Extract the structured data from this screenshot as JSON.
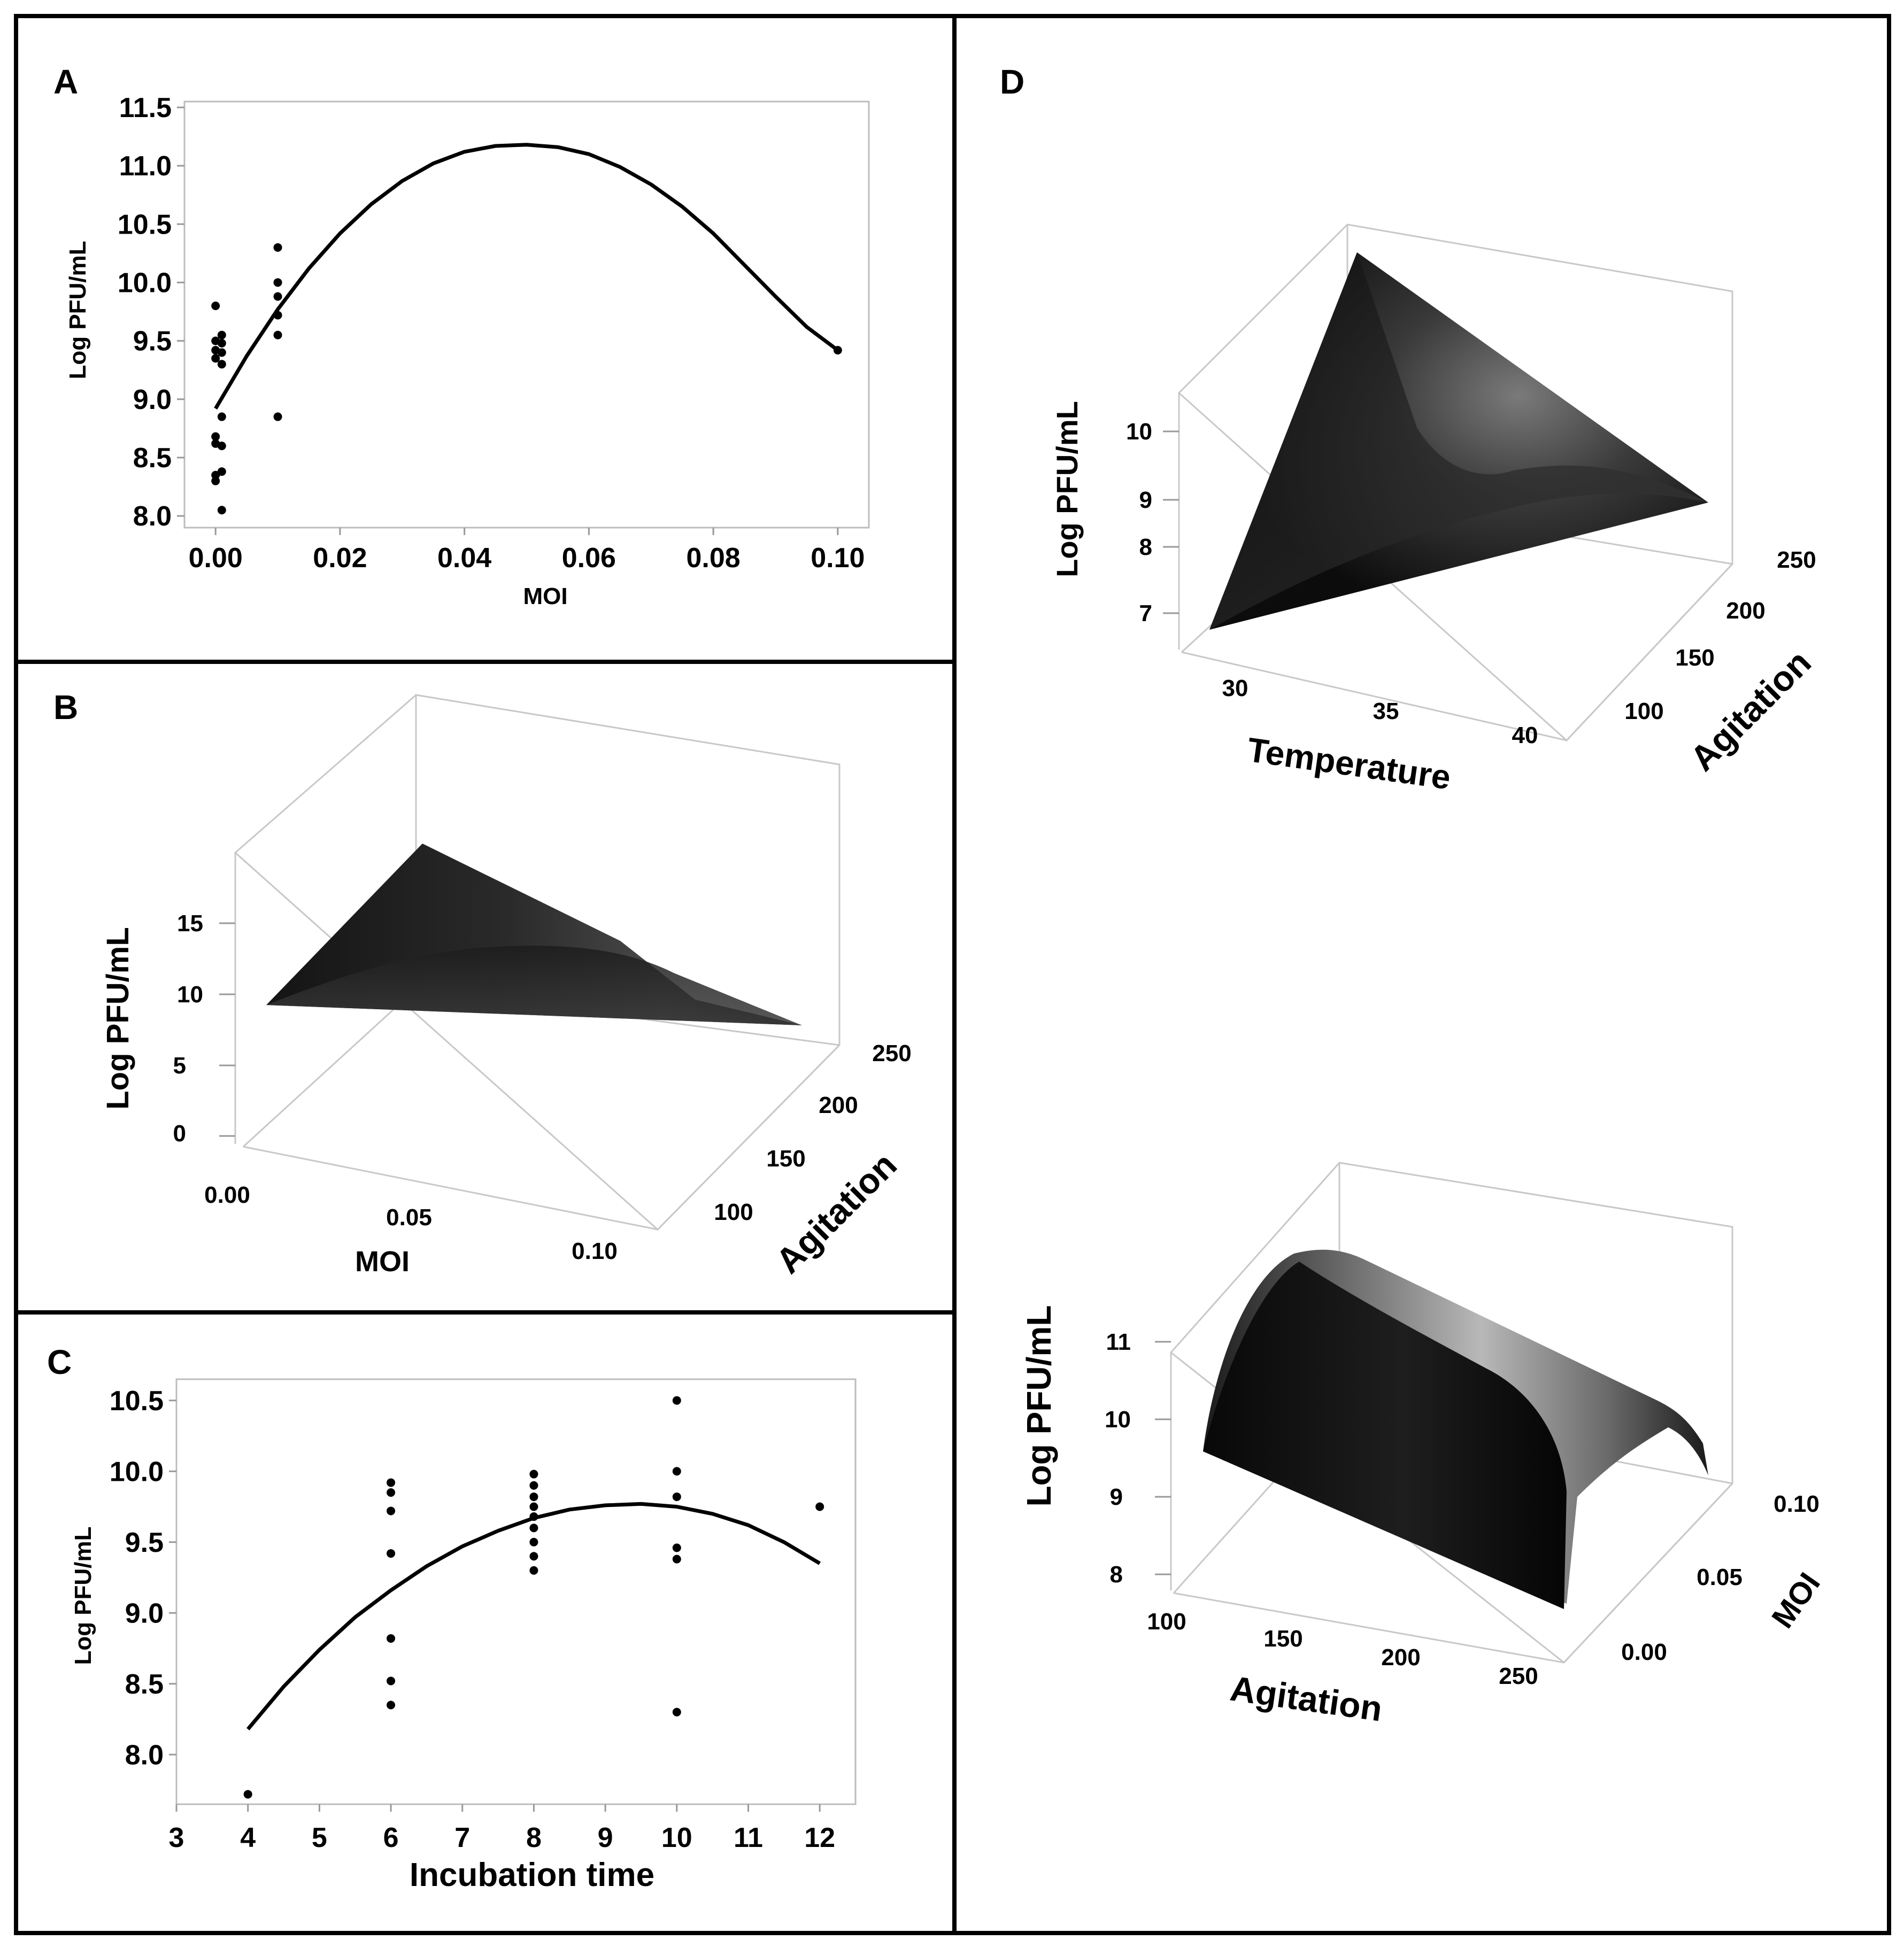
{
  "chart_data": [
    {
      "id": "A",
      "type": "scatter",
      "panel_label": "A",
      "xlabel": "MOI",
      "ylabel": "Log PFU/mL",
      "xlim": [
        -0.005,
        0.105
      ],
      "ylim": [
        7.9,
        11.55
      ],
      "xticks": [
        "0.00",
        "0.02",
        "0.04",
        "0.06",
        "0.08",
        "0.10"
      ],
      "yticks": [
        "8.0",
        "8.5",
        "9.0",
        "9.5",
        "10.0",
        "10.5",
        "11.0",
        "11.5"
      ],
      "points": [
        {
          "x": 0.0,
          "y": 9.8
        },
        {
          "x": 0.0,
          "y": 9.5
        },
        {
          "x": 0.0,
          "y": 9.42
        },
        {
          "x": 0.0,
          "y": 9.35
        },
        {
          "x": 0.0,
          "y": 8.68
        },
        {
          "x": 0.0,
          "y": 8.62
        },
        {
          "x": 0.0,
          "y": 8.35
        },
        {
          "x": 0.0,
          "y": 8.3
        },
        {
          "x": 0.001,
          "y": 9.55
        },
        {
          "x": 0.001,
          "y": 9.48
        },
        {
          "x": 0.001,
          "y": 9.4
        },
        {
          "x": 0.001,
          "y": 9.3
        },
        {
          "x": 0.001,
          "y": 8.85
        },
        {
          "x": 0.001,
          "y": 8.6
        },
        {
          "x": 0.001,
          "y": 8.38
        },
        {
          "x": 0.001,
          "y": 8.05
        },
        {
          "x": 0.01,
          "y": 10.3
        },
        {
          "x": 0.01,
          "y": 10.0
        },
        {
          "x": 0.01,
          "y": 9.88
        },
        {
          "x": 0.01,
          "y": 9.72
        },
        {
          "x": 0.01,
          "y": 9.55
        },
        {
          "x": 0.01,
          "y": 8.85
        },
        {
          "x": 0.1,
          "y": 9.42
        }
      ],
      "fit": {
        "x": [
          0.0,
          0.005,
          0.01,
          0.015,
          0.02,
          0.025,
          0.03,
          0.035,
          0.04,
          0.045,
          0.05,
          0.055,
          0.06,
          0.065,
          0.07,
          0.075,
          0.08,
          0.085,
          0.09,
          0.095,
          0.1
        ],
        "y": [
          8.92,
          9.37,
          9.77,
          10.12,
          10.42,
          10.67,
          10.87,
          11.02,
          11.12,
          11.17,
          11.18,
          11.16,
          11.1,
          10.99,
          10.84,
          10.65,
          10.42,
          10.15,
          9.88,
          9.62,
          9.42
        ]
      }
    },
    {
      "id": "B",
      "type": "surface",
      "panel_label": "B",
      "zlabel": "Log PFU/mL",
      "xlabel": "MOI",
      "ylabel": "Agitation",
      "zticks": [
        "0",
        "5",
        "10",
        "15"
      ],
      "xticks": [
        "0.00",
        "0.05",
        "0.10"
      ],
      "yticks": [
        "100",
        "150",
        "200",
        "250"
      ]
    },
    {
      "id": "C",
      "type": "scatter",
      "panel_label": "C",
      "xlabel": "Incubation time",
      "ylabel": "Log PFU/mL",
      "xlim": [
        3,
        12.5
      ],
      "ylim": [
        7.65,
        10.65
      ],
      "xticks": [
        "3",
        "4",
        "5",
        "6",
        "7",
        "8",
        "9",
        "10",
        "11",
        "12"
      ],
      "yticks": [
        "8.0",
        "8.5",
        "9.0",
        "9.5",
        "10.0",
        "10.5"
      ],
      "points": [
        {
          "x": 4,
          "y": 7.72
        },
        {
          "x": 6,
          "y": 9.92
        },
        {
          "x": 6,
          "y": 9.85
        },
        {
          "x": 6,
          "y": 9.72
        },
        {
          "x": 6,
          "y": 9.42
        },
        {
          "x": 6,
          "y": 8.82
        },
        {
          "x": 6,
          "y": 8.52
        },
        {
          "x": 6,
          "y": 8.35
        },
        {
          "x": 8,
          "y": 9.98
        },
        {
          "x": 8,
          "y": 9.9
        },
        {
          "x": 8,
          "y": 9.82
        },
        {
          "x": 8,
          "y": 9.75
        },
        {
          "x": 8,
          "y": 9.68
        },
        {
          "x": 8,
          "y": 9.6
        },
        {
          "x": 8,
          "y": 9.5
        },
        {
          "x": 8,
          "y": 9.4
        },
        {
          "x": 8,
          "y": 9.3
        },
        {
          "x": 10,
          "y": 10.5
        },
        {
          "x": 10,
          "y": 10.0
        },
        {
          "x": 10,
          "y": 9.82
        },
        {
          "x": 10,
          "y": 9.46
        },
        {
          "x": 10,
          "y": 9.38
        },
        {
          "x": 10,
          "y": 8.3
        },
        {
          "x": 12,
          "y": 9.75
        }
      ],
      "fit": {
        "x": [
          4,
          4.5,
          5,
          5.5,
          6,
          6.5,
          7,
          7.5,
          8,
          8.5,
          9,
          9.5,
          10,
          10.5,
          11,
          11.5,
          12
        ],
        "y": [
          8.18,
          8.48,
          8.74,
          8.97,
          9.16,
          9.33,
          9.47,
          9.58,
          9.67,
          9.73,
          9.76,
          9.77,
          9.75,
          9.7,
          9.62,
          9.5,
          9.35
        ]
      }
    },
    {
      "id": "D-top",
      "type": "surface",
      "panel_label": "D",
      "zlabel": "Log PFU/mL",
      "xlabel": "Temperature",
      "ylabel": "Agitation",
      "zticks": [
        "7",
        "8",
        "9",
        "10"
      ],
      "xticks": [
        "30",
        "35",
        "40"
      ],
      "yticks": [
        "100",
        "150",
        "200",
        "250"
      ]
    },
    {
      "id": "D-bottom",
      "type": "surface",
      "zlabel": "Log PFU/mL",
      "xlabel": "Agitation",
      "ylabel": "MOI",
      "zticks": [
        "8",
        "9",
        "10",
        "11"
      ],
      "xticks": [
        "100",
        "150",
        "200",
        "250"
      ],
      "yticks": [
        "0.00",
        "0.05",
        "0.10"
      ]
    }
  ]
}
